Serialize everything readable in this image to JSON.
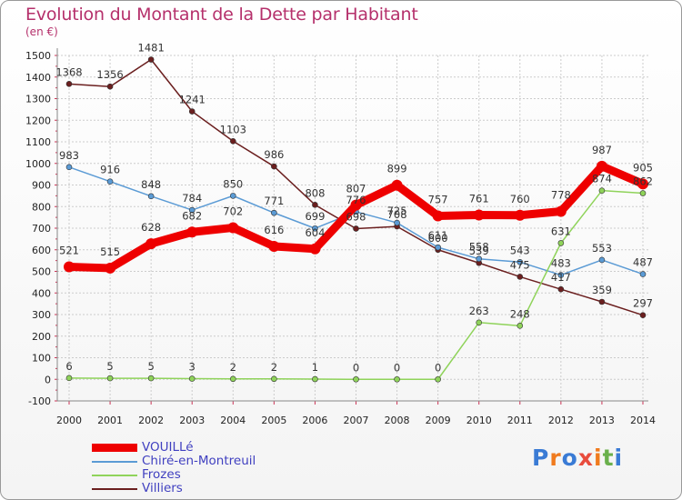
{
  "title": "Evolution du Montant de la Dette par Habitant",
  "unit": "(en €)",
  "logo": "Proxiti",
  "colors": {
    "title": "#b5306b",
    "grid": "#cccccc",
    "axis": "#888888"
  },
  "chart_data": {
    "type": "line",
    "title": "Evolution du Montant de la Dette par Habitant",
    "ylabel": "(en €)",
    "xlabel": "",
    "x": [
      2000,
      2001,
      2002,
      2003,
      2004,
      2005,
      2006,
      2007,
      2008,
      2009,
      2010,
      2011,
      2012,
      2013,
      2014
    ],
    "ylim": [
      -100,
      1500
    ],
    "yticks": [
      -100,
      0,
      100,
      200,
      300,
      400,
      500,
      600,
      700,
      800,
      900,
      1000,
      1100,
      1200,
      1300,
      1400,
      1500
    ],
    "grid": true,
    "legend_position": "bottom-left",
    "series": [
      {
        "name": "Villiers",
        "color": "#6b1f1f",
        "values": [
          1368,
          1356,
          1481,
          1241,
          1103,
          986,
          808,
          698,
          708,
          600,
          539,
          475,
          417,
          359,
          297
        ],
        "labels": [
          "1368",
          "1356",
          "1481",
          "1241",
          "1103",
          "986",
          "808",
          "698",
          "708",
          "600",
          "539",
          "475",
          "417",
          "359",
          "297"
        ]
      },
      {
        "name": "Chiré-en-Montreuil",
        "color": "#5b9bd5",
        "values": [
          983,
          916,
          848,
          784,
          850,
          771,
          699,
          776,
          725,
          611,
          558,
          543,
          483,
          553,
          487
        ],
        "labels": [
          "983",
          "916",
          "848",
          "784",
          "850",
          "771",
          "699",
          "776",
          "725",
          "611",
          "558",
          "543",
          "483",
          "553",
          "487"
        ]
      },
      {
        "name": "Frozes",
        "color": "#8fd35a",
        "values": [
          6,
          5,
          5,
          3,
          2,
          2,
          1,
          0,
          0,
          0,
          263,
          248,
          631,
          874,
          862
        ],
        "labels": [
          "6",
          "5",
          "5",
          "3",
          "2",
          "2",
          "1",
          "0",
          "0",
          "0",
          "263",
          "248",
          "631",
          "874",
          "862"
        ]
      },
      {
        "name": "VOUILLé",
        "color": "#ee0000",
        "values": [
          521,
          515,
          628,
          682,
          702,
          616,
          604,
          807,
          899,
          757,
          761,
          760,
          778,
          987,
          905
        ],
        "labels": [
          "521",
          "515",
          "628",
          "682",
          "702",
          "616",
          "604",
          "807",
          "899",
          "757",
          "761",
          "760",
          "778",
          "987",
          "905"
        ]
      }
    ]
  },
  "legend": {
    "items": [
      {
        "label": "VOUILLé",
        "color": "#ee0000"
      },
      {
        "label": "Chiré-en-Montreuil",
        "color": "#5b9bd5"
      },
      {
        "label": "Frozes",
        "color": "#8fd35a"
      },
      {
        "label": "Villiers",
        "color": "#6b1f1f"
      }
    ]
  }
}
